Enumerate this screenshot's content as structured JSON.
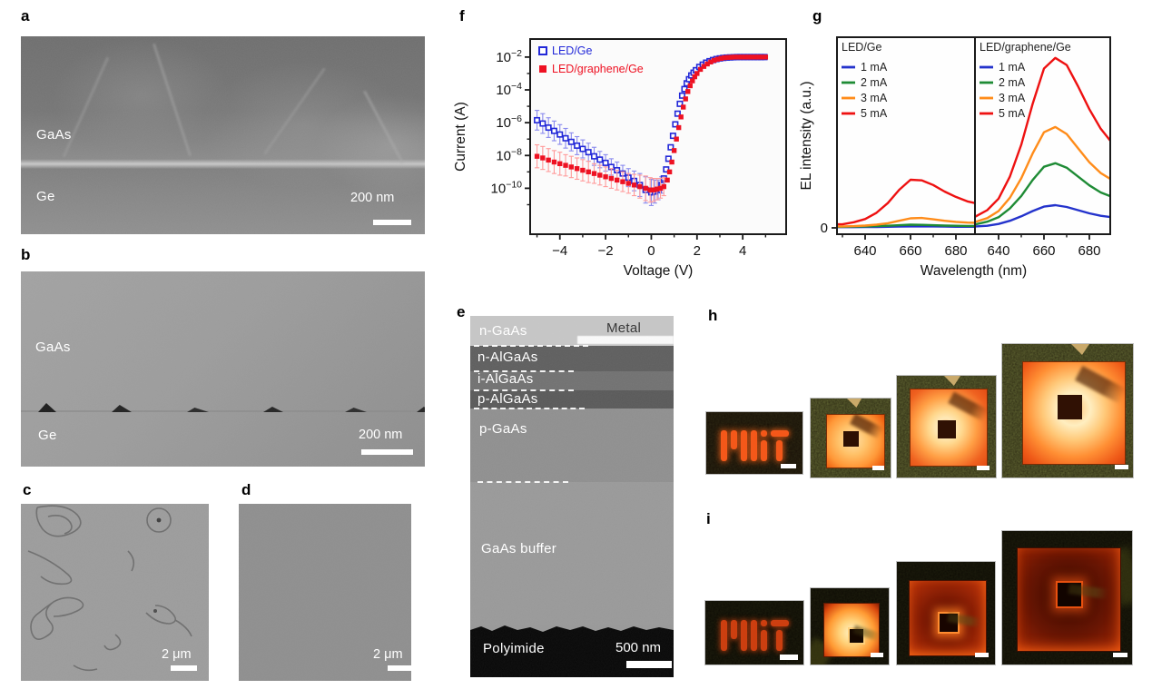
{
  "accent_colors": {
    "blue": "#2228d8",
    "red": "#ee1122",
    "green": "#1e8b35",
    "orange": "#ff8c1a"
  },
  "panels": {
    "a": {
      "letter": "a",
      "labels": {
        "top": "GaAs",
        "bottom": "Ge"
      },
      "scale_bar": "200 nm"
    },
    "b": {
      "letter": "b",
      "labels": {
        "top": "GaAs",
        "bottom": "Ge"
      },
      "scale_bar": "200 nm"
    },
    "c": {
      "letter": "c",
      "scale_bar": "2 μm"
    },
    "d": {
      "letter": "d",
      "scale_bar": "2 μm"
    },
    "e": {
      "letter": "e",
      "layers": {
        "n_gaas": "n-GaAs",
        "metal": "Metal",
        "n_algaas": "n-AlGaAs",
        "i_algaas": "i-AlGaAs",
        "p_algaas": "p-AlGaAs",
        "p_gaas": "p-GaAs",
        "buffer": "GaAs buffer",
        "polyimide": "Polyimide"
      },
      "scale_bar": "500 nm"
    },
    "f": {
      "letter": "f"
    },
    "g": {
      "letter": "g"
    },
    "h": {
      "letter": "h"
    },
    "i": {
      "letter": "i"
    }
  },
  "chart_data": [
    {
      "type": "scatter",
      "id": "iv-curve",
      "xlabel": "Voltage (V)",
      "ylabel": "Current (A)",
      "x_ticks": [
        {
          "v": -4,
          "label": "−4"
        },
        {
          "v": -2,
          "label": "−2"
        },
        {
          "v": 0,
          "label": "0"
        },
        {
          "v": 2,
          "label": "2"
        },
        {
          "v": 4,
          "label": "4"
        }
      ],
      "x_minor_ticks": [
        -5,
        -3,
        -1,
        1,
        3,
        5
      ],
      "y_tick_exponents": [
        -2,
        -4,
        -6,
        -8,
        -10
      ],
      "y_minor_exponents": [
        -3,
        -5,
        -7,
        -9,
        -11
      ],
      "xlim": [
        -5.3,
        5.9
      ],
      "ylog_range": [
        -0.9,
        -12.8
      ],
      "grid": false,
      "legend_position": "top-left",
      "series": [
        {
          "name": "LED/Ge",
          "color": "#2228d8",
          "errbar_color": "#8a8aee",
          "marker": "open-square",
          "points": [
            [
              -5,
              -5.85,
              0.6
            ],
            [
              -4.75,
              -6.05,
              0.6
            ],
            [
              -4.5,
              -6.3,
              0.6
            ],
            [
              -4.25,
              -6.5,
              0.6
            ],
            [
              -4,
              -6.72,
              0.6
            ],
            [
              -3.75,
              -6.95,
              0.6
            ],
            [
              -3.5,
              -7.17,
              0.55
            ],
            [
              -3.25,
              -7.4,
              0.55
            ],
            [
              -3,
              -7.6,
              0.55
            ],
            [
              -2.75,
              -7.8,
              0.55
            ],
            [
              -2.5,
              -8.05,
              0.55
            ],
            [
              -2.25,
              -8.25,
              0.5
            ],
            [
              -2,
              -8.45,
              0.5
            ],
            [
              -1.75,
              -8.7,
              0.5
            ],
            [
              -1.5,
              -8.9,
              0.5
            ],
            [
              -1.25,
              -9.1,
              0.5
            ],
            [
              -1,
              -9.35,
              0.55
            ],
            [
              -0.75,
              -9.55,
              0.6
            ],
            [
              -0.5,
              -9.8,
              0.7
            ],
            [
              -0.25,
              -10.1,
              0.8
            ],
            [
              0,
              -10.25,
              0.8
            ],
            [
              0.15,
              -10.2,
              0.7
            ],
            [
              0.3,
              -10.1,
              0.6
            ],
            [
              0.45,
              -9.8,
              0.5
            ],
            [
              0.55,
              -9.4
            ],
            [
              0.65,
              -8.85
            ],
            [
              0.75,
              -8.2
            ],
            [
              0.85,
              -7.5
            ],
            [
              0.95,
              -6.8
            ],
            [
              1.05,
              -6.1
            ],
            [
              1.15,
              -5.45
            ],
            [
              1.25,
              -4.85
            ],
            [
              1.35,
              -4.35
            ],
            [
              1.45,
              -3.95
            ],
            [
              1.55,
              -3.6
            ],
            [
              1.65,
              -3.35
            ],
            [
              1.75,
              -3.12
            ],
            [
              1.85,
              -2.95
            ],
            [
              1.95,
              -2.8
            ],
            [
              2.1,
              -2.6
            ],
            [
              2.25,
              -2.46
            ],
            [
              2.4,
              -2.34
            ],
            [
              2.55,
              -2.25
            ],
            [
              2.7,
              -2.18
            ],
            [
              2.85,
              -2.12
            ],
            [
              3,
              -2.08
            ],
            [
              3.15,
              -2.05
            ],
            [
              3.3,
              -2.03
            ],
            [
              3.45,
              -2.02
            ],
            [
              3.6,
              -2.01
            ],
            [
              3.75,
              -2
            ],
            [
              3.9,
              -2
            ],
            [
              4.05,
              -2
            ],
            [
              4.2,
              -2
            ],
            [
              4.35,
              -2
            ],
            [
              4.5,
              -2
            ],
            [
              4.65,
              -2
            ],
            [
              4.8,
              -2
            ],
            [
              4.95,
              -2
            ]
          ]
        },
        {
          "name": "LED/graphene/Ge",
          "color": "#ee1122",
          "errbar_color": "#ff9a9a",
          "marker": "filled-square",
          "points": [
            [
              -5,
              -8.05,
              0.7
            ],
            [
              -4.75,
              -8.15,
              0.7
            ],
            [
              -4.5,
              -8.28,
              0.7
            ],
            [
              -4.25,
              -8.4,
              0.7
            ],
            [
              -4,
              -8.5,
              0.7
            ],
            [
              -3.75,
              -8.6,
              0.65
            ],
            [
              -3.5,
              -8.7,
              0.65
            ],
            [
              -3.25,
              -8.8,
              0.65
            ],
            [
              -3,
              -8.9,
              0.65
            ],
            [
              -2.75,
              -9,
              0.65
            ],
            [
              -2.5,
              -9.1,
              0.6
            ],
            [
              -2.25,
              -9.2,
              0.6
            ],
            [
              -2,
              -9.3,
              0.6
            ],
            [
              -1.75,
              -9.4,
              0.6
            ],
            [
              -1.5,
              -9.5,
              0.6
            ],
            [
              -1.25,
              -9.6,
              0.6
            ],
            [
              -1,
              -9.7,
              0.6
            ],
            [
              -0.75,
              -9.8,
              0.65
            ],
            [
              -0.5,
              -9.9,
              0.7
            ],
            [
              -0.25,
              -10,
              0.75
            ],
            [
              -0.05,
              -10.1,
              0.75
            ],
            [
              0.1,
              -10.1,
              0.7
            ],
            [
              0.25,
              -10.05,
              0.65
            ],
            [
              0.4,
              -10,
              0.6
            ],
            [
              0.55,
              -9.9,
              0.55
            ],
            [
              0.7,
              -9.5
            ],
            [
              0.8,
              -9
            ],
            [
              0.9,
              -8.4
            ],
            [
              1,
              -7.7
            ],
            [
              1.1,
              -7
            ],
            [
              1.2,
              -6.3
            ],
            [
              1.3,
              -5.65
            ],
            [
              1.4,
              -5.05
            ],
            [
              1.5,
              -4.55
            ],
            [
              1.6,
              -4.1
            ],
            [
              1.7,
              -3.75
            ],
            [
              1.8,
              -3.45
            ],
            [
              1.9,
              -3.2
            ],
            [
              2,
              -3
            ],
            [
              2.15,
              -2.75
            ],
            [
              2.3,
              -2.57
            ],
            [
              2.45,
              -2.42
            ],
            [
              2.6,
              -2.3
            ],
            [
              2.75,
              -2.2
            ],
            [
              2.9,
              -2.13
            ],
            [
              3.05,
              -2.08
            ],
            [
              3.2,
              -2.04
            ],
            [
              3.35,
              -2.02
            ],
            [
              3.5,
              -2.01
            ],
            [
              3.65,
              -2
            ],
            [
              3.8,
              -2
            ],
            [
              3.95,
              -2
            ],
            [
              4.1,
              -2
            ],
            [
              4.25,
              -2
            ],
            [
              4.4,
              -2
            ],
            [
              4.55,
              -2
            ],
            [
              4.7,
              -2
            ],
            [
              4.85,
              -2
            ],
            [
              5,
              -2
            ]
          ]
        }
      ]
    },
    {
      "type": "line",
      "id": "el-spectra",
      "xlabel": "Wavelength (nm)",
      "ylabel": "EL intensity (a.u.)",
      "y_zero_label": "0",
      "x": [
        630,
        635,
        640,
        645,
        650,
        655,
        660,
        665,
        670,
        675,
        680,
        685,
        690
      ],
      "x_ticks": [
        640,
        660,
        680
      ],
      "x_minor_ticks": [
        630,
        650,
        670,
        690
      ],
      "ylim": [
        0,
        1.05
      ],
      "grid": false,
      "panels": [
        {
          "title": "LED/Ge",
          "series": [
            {
              "name": "1 mA",
              "color": "#2433cc",
              "values": [
                0.004,
                0.004,
                0.005,
                0.005,
                0.006,
                0.007,
                0.008,
                0.008,
                0.008,
                0.007,
                0.006,
                0.006,
                0.006
              ]
            },
            {
              "name": "2 mA",
              "color": "#1e8b35",
              "values": [
                0.006,
                0.007,
                0.008,
                0.01,
                0.012,
                0.015,
                0.018,
                0.017,
                0.015,
                0.013,
                0.012,
                0.011,
                0.011
              ]
            },
            {
              "name": "3 mA",
              "color": "#ff8c1a",
              "values": [
                0.008,
                0.01,
                0.013,
                0.018,
                0.026,
                0.04,
                0.054,
                0.056,
                0.048,
                0.04,
                0.034,
                0.03,
                0.028
              ]
            },
            {
              "name": "5 mA",
              "color": "#ee1111",
              "values": [
                0.02,
                0.032,
                0.05,
                0.085,
                0.14,
                0.215,
                0.272,
                0.268,
                0.242,
                0.205,
                0.175,
                0.15,
                0.135
              ]
            }
          ]
        },
        {
          "title": "LED/graphene/Ge",
          "series": [
            {
              "name": "1 mA",
              "color": "#2433cc",
              "values": [
                0.008,
                0.012,
                0.022,
                0.04,
                0.065,
                0.095,
                0.12,
                0.128,
                0.118,
                0.1,
                0.082,
                0.068,
                0.06
              ]
            },
            {
              "name": "2 mA",
              "color": "#1e8b35",
              "values": [
                0.02,
                0.035,
                0.06,
                0.11,
                0.18,
                0.27,
                0.345,
                0.365,
                0.34,
                0.29,
                0.24,
                0.2,
                0.175
              ]
            },
            {
              "name": "3 mA",
              "color": "#ff8c1a",
              "values": [
                0.035,
                0.055,
                0.095,
                0.17,
                0.28,
                0.42,
                0.54,
                0.57,
                0.53,
                0.45,
                0.37,
                0.31,
                0.27
              ]
            },
            {
              "name": "5 mA",
              "color": "#ee1111",
              "values": [
                0.065,
                0.1,
                0.165,
                0.29,
                0.47,
                0.7,
                0.9,
                0.96,
                0.92,
                0.8,
                0.67,
                0.56,
                0.48
              ]
            }
          ]
        }
      ]
    }
  ]
}
